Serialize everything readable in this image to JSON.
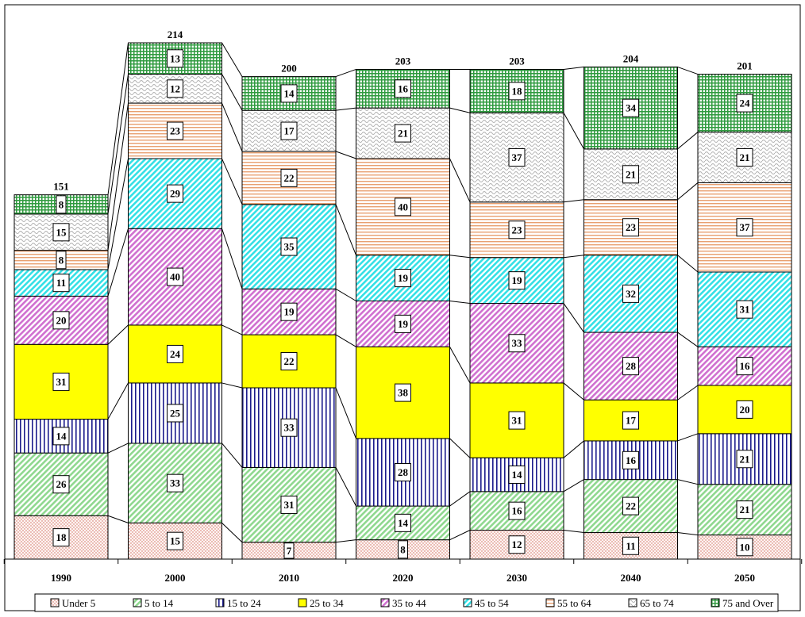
{
  "chart_data": {
    "type": "bar",
    "stacked": true,
    "categories": [
      "1990",
      "2000",
      "2010",
      "2020",
      "2030",
      "2040",
      "2050"
    ],
    "totals": [
      151,
      214,
      200,
      203,
      203,
      204,
      201
    ],
    "series": [
      {
        "name": "Under 5",
        "color": "#f2c0b8",
        "pattern": "dots",
        "values": [
          18,
          15,
          7,
          8,
          12,
          11,
          10
        ]
      },
      {
        "name": "5 to 14",
        "color": "#8fd88f",
        "pattern": "diag",
        "values": [
          26,
          33,
          31,
          14,
          16,
          22,
          21
        ]
      },
      {
        "name": "15 to 24",
        "color": "#1c1c8c",
        "pattern": "vert",
        "values": [
          14,
          25,
          33,
          28,
          14,
          16,
          21
        ]
      },
      {
        "name": "25 to 34",
        "color": "#ffff00",
        "pattern": "solid",
        "values": [
          31,
          24,
          22,
          38,
          31,
          17,
          20
        ]
      },
      {
        "name": "35 to 44",
        "color": "#d070d0",
        "pattern": "diag",
        "values": [
          20,
          40,
          19,
          19,
          33,
          28,
          16
        ]
      },
      {
        "name": "45 to 54",
        "color": "#33e0e6",
        "pattern": "diag",
        "values": [
          11,
          29,
          35,
          19,
          19,
          32,
          31
        ]
      },
      {
        "name": "55 to 64",
        "color": "#e8a070",
        "pattern": "horiz",
        "values": [
          8,
          23,
          22,
          40,
          23,
          23,
          37
        ]
      },
      {
        "name": "65 to 74",
        "color": "#b0b0b0",
        "pattern": "wave",
        "values": [
          15,
          12,
          17,
          21,
          37,
          21,
          21
        ]
      },
      {
        "name": "75 and Over",
        "color": "#2e9a3e",
        "pattern": "grid",
        "values": [
          8,
          13,
          14,
          16,
          18,
          34,
          24
        ]
      }
    ],
    "xlabel": "",
    "ylabel": "",
    "ylim": [
      0,
      214
    ],
    "grid": false,
    "legend": "bottom"
  }
}
